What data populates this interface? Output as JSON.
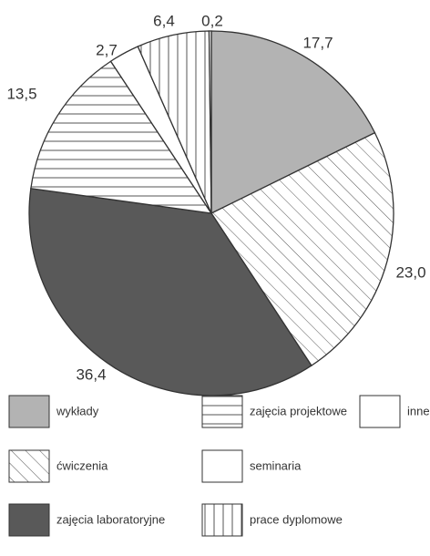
{
  "chart_data": {
    "type": "pie",
    "title": "",
    "slices": [
      {
        "category": "wykłady",
        "value": 17.7,
        "label": "17,7",
        "style": "solid-light"
      },
      {
        "category": "ćwiczenia",
        "value": 23.0,
        "label": "23,0",
        "style": "diagonal"
      },
      {
        "category": "zajęcia laboratoryjne",
        "value": 36.4,
        "label": "36,4",
        "style": "solid-dark"
      },
      {
        "category": "zajęcia projektowe",
        "value": 13.5,
        "label": "13,5",
        "style": "horizontal"
      },
      {
        "category": "seminaria",
        "value": 2.7,
        "label": "2,7",
        "style": "white"
      },
      {
        "category": "prace dyplomowe",
        "value": 6.4,
        "label": "6,4",
        "style": "vertical"
      },
      {
        "category": "inne",
        "value": 0.2,
        "label": "0,2",
        "style": "white"
      }
    ],
    "legend": {
      "placement": "bottom",
      "entries": [
        {
          "label": "wykłady",
          "style": "solid-light"
        },
        {
          "label": "ćwiczenia",
          "style": "diagonal"
        },
        {
          "label": "zajęcia laboratoryjne",
          "style": "solid-dark"
        },
        {
          "label": "zajęcia projektowe",
          "style": "horizontal"
        },
        {
          "label": "seminaria",
          "style": "white"
        },
        {
          "label": "prace dyplomowe",
          "style": "vertical"
        },
        {
          "label": "inne",
          "style": "white"
        }
      ]
    },
    "colors": {
      "solid_light": "#b3b3b3",
      "solid_dark": "#595959",
      "hatch_line": "#555555",
      "outline": "#333333",
      "background": "#ffffff"
    }
  }
}
